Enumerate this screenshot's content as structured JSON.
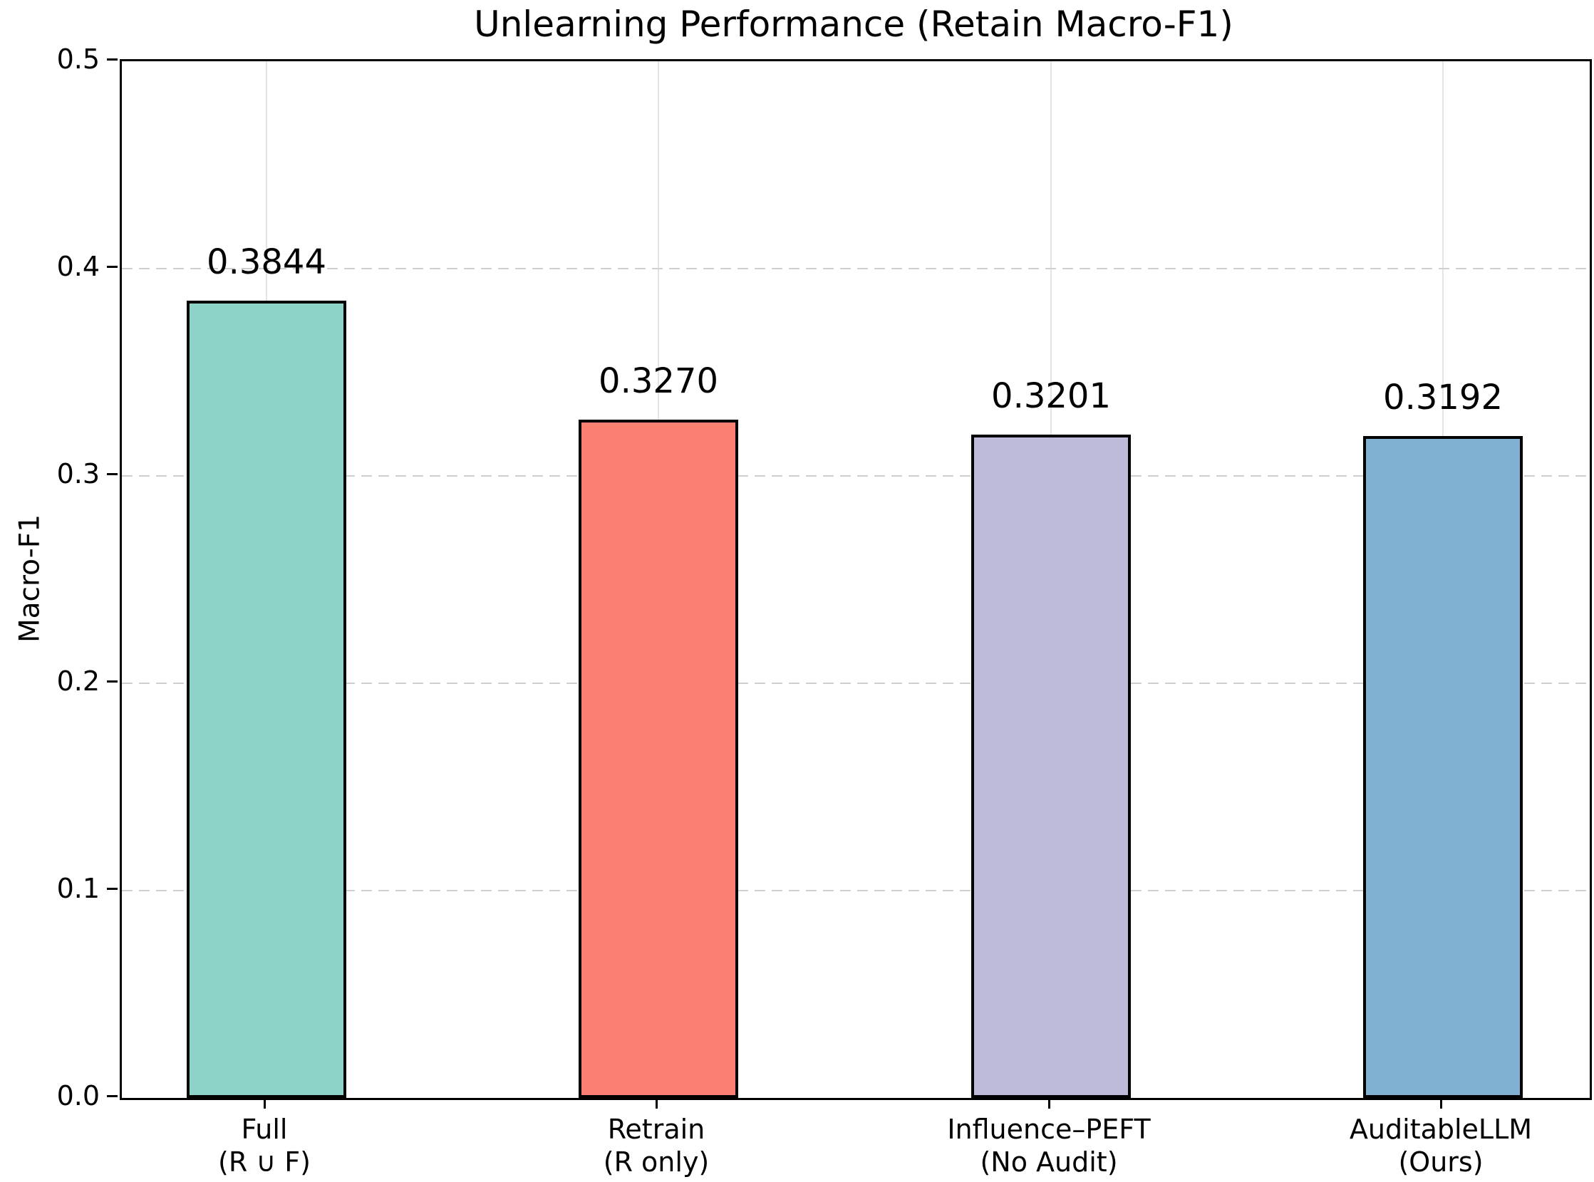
{
  "chart_data": {
    "type": "bar",
    "title": "Unlearning Performance (Retain Macro-F1)",
    "ylabel": "Macro-F1",
    "xlabel": "",
    "ylim": [
      0.0,
      0.5
    ],
    "yticks": [
      0.0,
      0.1,
      0.2,
      0.3,
      0.4,
      0.5
    ],
    "ytick_labels": [
      "0.0",
      "0.1",
      "0.2",
      "0.3",
      "0.4",
      "0.5"
    ],
    "grid": {
      "enabled": true,
      "horizontal_style": "dashed",
      "vertical_style": "solid"
    },
    "legend_position": "none",
    "categories": [
      {
        "line1": "Full",
        "line2": "(R ∪ F)"
      },
      {
        "line1": "Retrain",
        "line2": "(R only)"
      },
      {
        "line1": "Influence–PEFT",
        "line2": "(No Audit)"
      },
      {
        "line1": "AuditableLLM",
        "line2": "(Ours)"
      }
    ],
    "values": [
      0.3844,
      0.327,
      0.3201,
      0.3192
    ],
    "value_labels": [
      "0.3844",
      "0.3270",
      "0.3201",
      "0.3192"
    ],
    "bar_colors": [
      "#8dd3c7",
      "#fb8072",
      "#bebada",
      "#80b1d3"
    ],
    "bar_edge_color": "#000000",
    "axis_color": "#000000",
    "background_color": "#ffffff"
  }
}
